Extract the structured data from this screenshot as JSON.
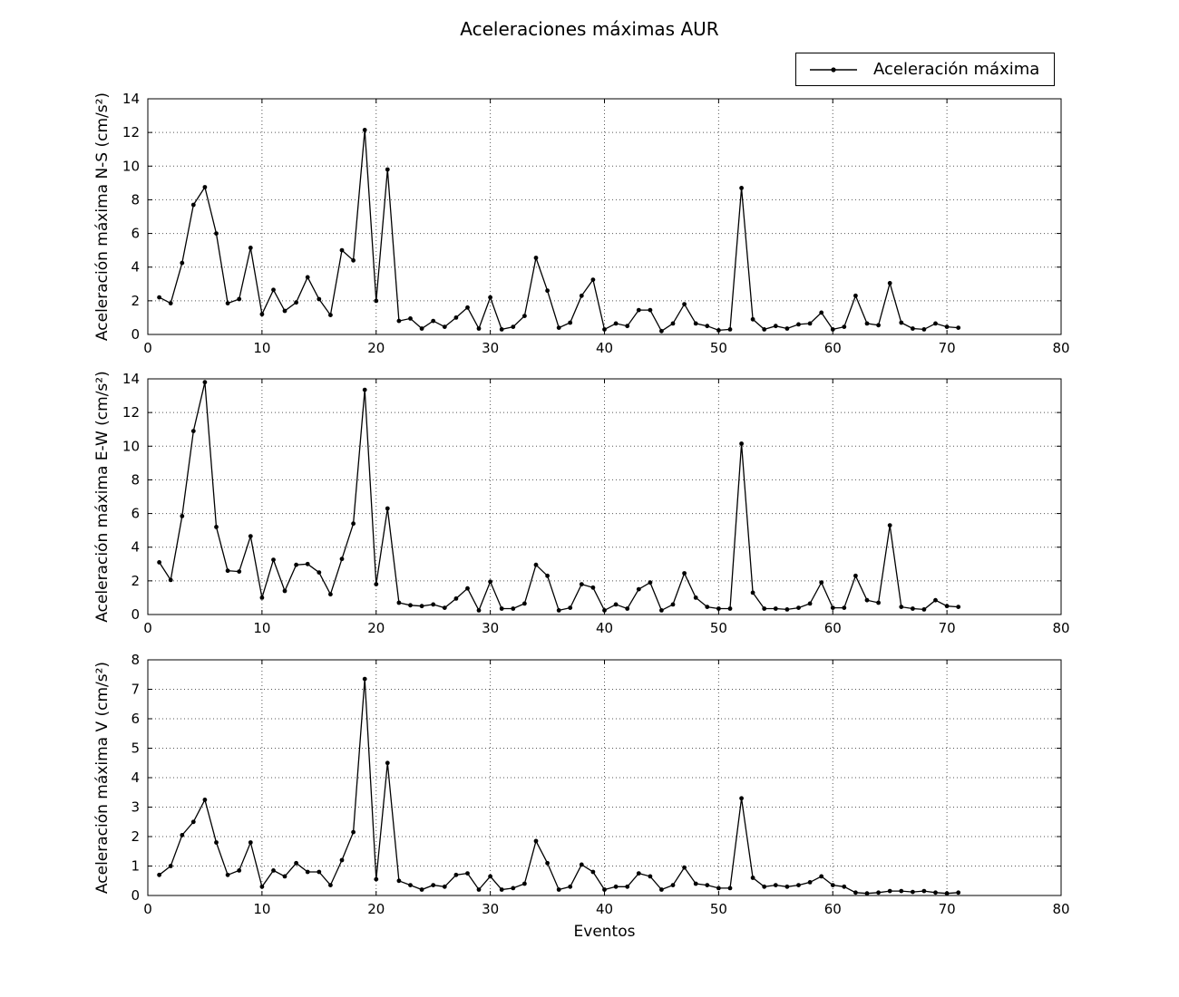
{
  "figure": {
    "title": "Aceleraciones máximas AUR",
    "background": "#ffffff",
    "line_color": "#000000",
    "grid_color": "#555555"
  },
  "legend": {
    "label": "Aceleración máxima",
    "position": "upper right",
    "marker": "line-with-dot"
  },
  "chart_data": [
    {
      "id": "ns",
      "type": "line",
      "ylabel": "Aceleración máxima N-S (cm/s²)",
      "xlabel": "",
      "xlim": [
        0,
        80
      ],
      "ylim": [
        0,
        14
      ],
      "xticks": [
        0,
        10,
        20,
        30,
        40,
        50,
        60,
        70,
        80
      ],
      "yticks": [
        0,
        2,
        4,
        6,
        8,
        10,
        12,
        14
      ],
      "grid": true,
      "x": [
        1,
        2,
        3,
        4,
        5,
        6,
        7,
        8,
        9,
        10,
        11,
        12,
        13,
        14,
        15,
        16,
        17,
        18,
        19,
        20,
        21,
        22,
        23,
        24,
        25,
        26,
        27,
        28,
        29,
        30,
        31,
        32,
        33,
        34,
        35,
        36,
        37,
        38,
        39,
        40,
        41,
        42,
        43,
        44,
        45,
        46,
        47,
        48,
        49,
        50,
        51,
        52,
        53,
        54,
        55,
        56,
        57,
        58,
        59,
        60,
        61,
        62,
        63,
        64,
        65,
        66,
        67,
        68,
        69,
        70,
        71
      ],
      "series": [
        {
          "name": "Aceleración máxima",
          "values": [
            2.2,
            1.85,
            4.25,
            7.7,
            8.75,
            6.0,
            1.85,
            2.1,
            5.15,
            1.2,
            2.65,
            1.4,
            1.9,
            3.4,
            2.1,
            1.15,
            5.0,
            4.4,
            12.15,
            2.0,
            9.8,
            0.8,
            0.95,
            0.35,
            0.8,
            0.45,
            1.0,
            1.6,
            0.35,
            2.2,
            0.3,
            0.45,
            1.1,
            4.55,
            2.6,
            0.4,
            0.7,
            2.3,
            3.25,
            0.3,
            0.65,
            0.5,
            1.45,
            1.45,
            0.2,
            0.65,
            1.8,
            0.65,
            0.5,
            0.25,
            0.3,
            8.7,
            0.9,
            0.3,
            0.5,
            0.35,
            0.6,
            0.65,
            1.3,
            0.3,
            0.45,
            2.3,
            0.65,
            0.55,
            3.05,
            0.7,
            0.35,
            0.3,
            0.65,
            0.45,
            0.4
          ]
        }
      ]
    },
    {
      "id": "ew",
      "type": "line",
      "ylabel": "Aceleración máxima E-W (cm/s²)",
      "xlabel": "",
      "xlim": [
        0,
        80
      ],
      "ylim": [
        0,
        14
      ],
      "xticks": [
        0,
        10,
        20,
        30,
        40,
        50,
        60,
        70,
        80
      ],
      "yticks": [
        0,
        2,
        4,
        6,
        8,
        10,
        12,
        14
      ],
      "grid": true,
      "x": [
        1,
        2,
        3,
        4,
        5,
        6,
        7,
        8,
        9,
        10,
        11,
        12,
        13,
        14,
        15,
        16,
        17,
        18,
        19,
        20,
        21,
        22,
        23,
        24,
        25,
        26,
        27,
        28,
        29,
        30,
        31,
        32,
        33,
        34,
        35,
        36,
        37,
        38,
        39,
        40,
        41,
        42,
        43,
        44,
        45,
        46,
        47,
        48,
        49,
        50,
        51,
        52,
        53,
        54,
        55,
        56,
        57,
        58,
        59,
        60,
        61,
        62,
        63,
        64,
        65,
        66,
        67,
        68,
        69,
        70,
        71
      ],
      "series": [
        {
          "name": "Aceleración máxima",
          "values": [
            3.1,
            2.05,
            5.85,
            10.9,
            13.8,
            5.2,
            2.6,
            2.55,
            4.65,
            1.0,
            3.25,
            1.4,
            2.95,
            3.0,
            2.5,
            1.2,
            3.3,
            5.4,
            13.35,
            1.8,
            6.3,
            0.7,
            0.55,
            0.5,
            0.6,
            0.4,
            0.95,
            1.55,
            0.25,
            1.95,
            0.35,
            0.35,
            0.65,
            2.95,
            2.3,
            0.25,
            0.4,
            1.8,
            1.6,
            0.25,
            0.6,
            0.35,
            1.5,
            1.9,
            0.25,
            0.6,
            2.45,
            1.0,
            0.45,
            0.35,
            0.35,
            10.15,
            1.3,
            0.35,
            0.35,
            0.3,
            0.4,
            0.65,
            1.9,
            0.4,
            0.4,
            2.3,
            0.85,
            0.7,
            5.3,
            0.45,
            0.35,
            0.3,
            0.85,
            0.5,
            0.45
          ]
        }
      ]
    },
    {
      "id": "v",
      "type": "line",
      "ylabel": "Aceleración máxima V (cm/s²)",
      "xlabel": "Eventos",
      "xlim": [
        0,
        80
      ],
      "ylim": [
        0,
        8
      ],
      "xticks": [
        0,
        10,
        20,
        30,
        40,
        50,
        60,
        70,
        80
      ],
      "yticks": [
        0,
        1,
        2,
        3,
        4,
        5,
        6,
        7,
        8
      ],
      "grid": true,
      "x": [
        1,
        2,
        3,
        4,
        5,
        6,
        7,
        8,
        9,
        10,
        11,
        12,
        13,
        14,
        15,
        16,
        17,
        18,
        19,
        20,
        21,
        22,
        23,
        24,
        25,
        26,
        27,
        28,
        29,
        30,
        31,
        32,
        33,
        34,
        35,
        36,
        37,
        38,
        39,
        40,
        41,
        42,
        43,
        44,
        45,
        46,
        47,
        48,
        49,
        50,
        51,
        52,
        53,
        54,
        55,
        56,
        57,
        58,
        59,
        60,
        61,
        62,
        63,
        64,
        65,
        66,
        67,
        68,
        69,
        70,
        71
      ],
      "series": [
        {
          "name": "Aceleración máxima",
          "values": [
            0.7,
            1.0,
            2.05,
            2.5,
            3.25,
            1.8,
            0.7,
            0.85,
            1.8,
            0.3,
            0.85,
            0.65,
            1.1,
            0.8,
            0.8,
            0.35,
            1.2,
            2.15,
            7.35,
            0.55,
            4.5,
            0.5,
            0.35,
            0.2,
            0.35,
            0.3,
            0.7,
            0.75,
            0.2,
            0.65,
            0.2,
            0.25,
            0.4,
            1.85,
            1.1,
            0.2,
            0.3,
            1.05,
            0.8,
            0.2,
            0.3,
            0.3,
            0.75,
            0.65,
            0.2,
            0.35,
            0.95,
            0.4,
            0.35,
            0.25,
            0.25,
            3.3,
            0.6,
            0.3,
            0.35,
            0.3,
            0.35,
            0.45,
            0.65,
            0.35,
            0.3,
            0.1,
            0.07,
            0.1,
            0.15,
            0.15,
            0.12,
            0.15,
            0.1,
            0.07,
            0.1
          ]
        }
      ]
    }
  ]
}
